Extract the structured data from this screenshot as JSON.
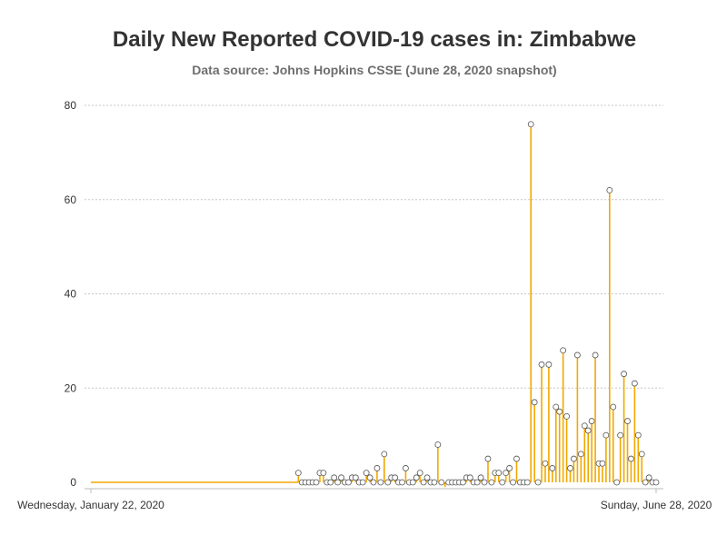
{
  "chart_data": {
    "type": "lollipop",
    "title": "Daily New Reported COVID-19 cases in: Zimbabwe",
    "subtitle": "Data source: Johns Hopkins CSSE (June 28, 2020 snapshot)",
    "xlabel": "",
    "ylabel": "",
    "x_tick_labels": [
      "Wednesday, January 22, 2020",
      "Sunday, June 28, 2020"
    ],
    "x_range": [
      "2020-01-22",
      "2020-06-28"
    ],
    "ylim": [
      0,
      80
    ],
    "y_ticks": [
      0,
      20,
      40,
      60,
      80
    ],
    "grid": "horizontal dotted",
    "colors": {
      "stem": "#f2a900",
      "marker_fill": "#ffffff",
      "marker_edge": "#555555",
      "grid": "#c8c8c8"
    },
    "dates": [
      "2020-03-20",
      "2020-03-21",
      "2020-03-22",
      "2020-03-23",
      "2020-03-24",
      "2020-03-25",
      "2020-03-26",
      "2020-03-27",
      "2020-03-28",
      "2020-03-29",
      "2020-03-30",
      "2020-03-31",
      "2020-04-01",
      "2020-04-02",
      "2020-04-03",
      "2020-04-04",
      "2020-04-05",
      "2020-04-06",
      "2020-04-07",
      "2020-04-08",
      "2020-04-09",
      "2020-04-10",
      "2020-04-11",
      "2020-04-12",
      "2020-04-13",
      "2020-04-14",
      "2020-04-15",
      "2020-04-16",
      "2020-04-17",
      "2020-04-18",
      "2020-04-19",
      "2020-04-20",
      "2020-04-21",
      "2020-04-22",
      "2020-04-23",
      "2020-04-24",
      "2020-04-25",
      "2020-04-26",
      "2020-04-27",
      "2020-04-28",
      "2020-04-29",
      "2020-04-30",
      "2020-05-01",
      "2020-05-02",
      "2020-05-03",
      "2020-05-04",
      "2020-05-05",
      "2020-05-06",
      "2020-05-07",
      "2020-05-08",
      "2020-05-09",
      "2020-05-10",
      "2020-05-11",
      "2020-05-12",
      "2020-05-13",
      "2020-05-14",
      "2020-05-15",
      "2020-05-16",
      "2020-05-17",
      "2020-05-18",
      "2020-05-19",
      "2020-05-20",
      "2020-05-21",
      "2020-05-22",
      "2020-05-23",
      "2020-05-24",
      "2020-05-25",
      "2020-05-26",
      "2020-05-27",
      "2020-05-28",
      "2020-05-29",
      "2020-05-30",
      "2020-05-31",
      "2020-06-01",
      "2020-06-02",
      "2020-06-03",
      "2020-06-04",
      "2020-06-05",
      "2020-06-06",
      "2020-06-07",
      "2020-06-08",
      "2020-06-09",
      "2020-06-10",
      "2020-06-11",
      "2020-06-12",
      "2020-06-13",
      "2020-06-14",
      "2020-06-15",
      "2020-06-16",
      "2020-06-17",
      "2020-06-18",
      "2020-06-19",
      "2020-06-20",
      "2020-06-21",
      "2020-06-22",
      "2020-06-23",
      "2020-06-24",
      "2020-06-25",
      "2020-06-26",
      "2020-06-27",
      "2020-06-28"
    ],
    "values": [
      2,
      0,
      0,
      0,
      0,
      0,
      2,
      2,
      0,
      0,
      1,
      0,
      1,
      0,
      0,
      1,
      1,
      0,
      0,
      2,
      1,
      0,
      3,
      0,
      6,
      0,
      1,
      1,
      0,
      0,
      3,
      0,
      0,
      1,
      2,
      0,
      1,
      0,
      0,
      8,
      0,
      -1,
      0,
      0,
      0,
      0,
      0,
      1,
      1,
      0,
      0,
      1,
      0,
      5,
      0,
      2,
      2,
      0,
      2,
      3,
      0,
      5,
      0,
      0,
      0,
      76,
      17,
      0,
      25,
      4,
      25,
      3,
      16,
      15,
      28,
      14,
      3,
      5,
      27,
      6,
      12,
      11,
      13,
      27,
      4,
      4,
      10,
      62,
      16,
      0,
      10,
      23,
      13,
      5,
      21,
      10,
      6,
      0,
      1,
      0,
      0
    ]
  }
}
